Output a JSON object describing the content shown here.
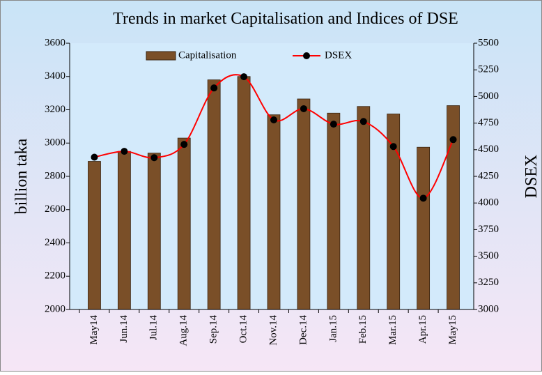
{
  "chart_data": {
    "type": "bar_line",
    "title": "Trends in market Capitalisation and Indices of DSE",
    "ylabel": "billion taka",
    "y2label": "DSEX",
    "categories": [
      "May14",
      "Jun.14",
      "Jul.14",
      "Aug.14",
      "Sep.14",
      "Oct.14",
      "Nov.14",
      "Dec.14",
      "Jan.15",
      "Feb.15",
      "Mar.15",
      "Apr.15",
      "May15"
    ],
    "series": [
      {
        "name": "Capitalisation",
        "type": "bar",
        "color": "#7a4f28",
        "values": [
          2890,
          2950,
          2940,
          3030,
          3380,
          3400,
          3170,
          3265,
          3180,
          3220,
          3175,
          2975,
          3225
        ]
      },
      {
        "name": "DSEX",
        "type": "line",
        "axis": "y2",
        "color": "#ff0000",
        "values": [
          4430,
          4485,
          4425,
          4550,
          5080,
          5185,
          4780,
          4885,
          4740,
          4765,
          4530,
          4045,
          4595
        ]
      }
    ],
    "ylim": [
      2000,
      3600
    ],
    "yticks": [
      2000,
      2200,
      2400,
      2600,
      2800,
      3000,
      3200,
      3400,
      3600
    ],
    "y2lim": [
      3000,
      5500
    ],
    "y2ticks": [
      3000,
      3250,
      3500,
      3750,
      4000,
      4250,
      4500,
      4750,
      5000,
      5250,
      5500
    ],
    "legend": "top"
  }
}
